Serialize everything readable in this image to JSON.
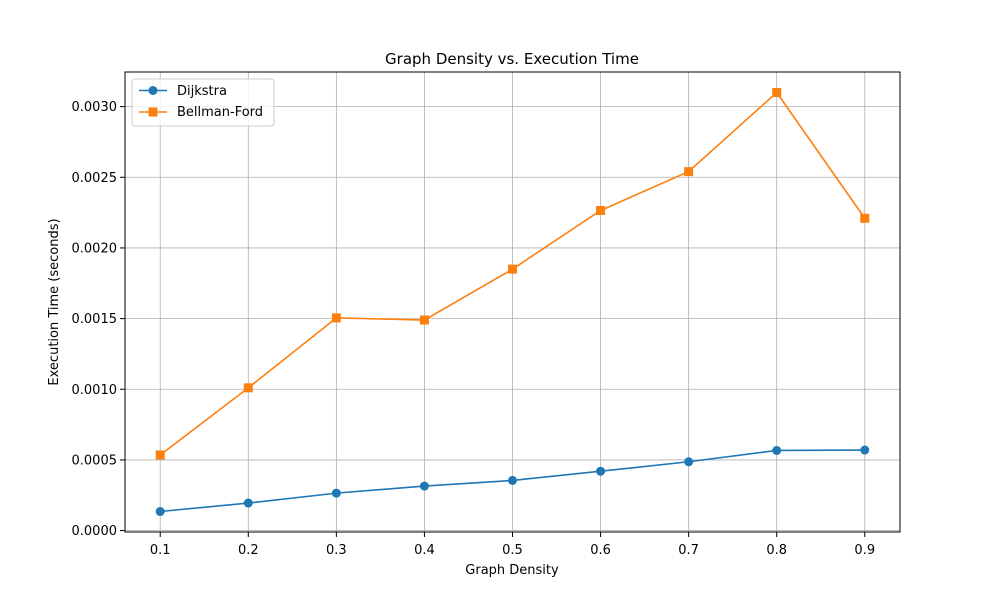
{
  "chart_data": {
    "type": "line",
    "title": "Graph Density vs. Execution Time",
    "xlabel": "Graph Density",
    "ylabel": "Execution Time (seconds)",
    "x": [
      0.1,
      0.2,
      0.3,
      0.4,
      0.5,
      0.6,
      0.7,
      0.8,
      0.9
    ],
    "xticks": [
      0.1,
      0.2,
      0.3,
      0.4,
      0.5,
      0.6,
      0.7,
      0.8,
      0.9
    ],
    "xtick_labels": [
      "0.1",
      "0.2",
      "0.3",
      "0.4",
      "0.5",
      "0.6",
      "0.7",
      "0.8",
      "0.9"
    ],
    "xlim": [
      0.06,
      0.94
    ],
    "yticks": [
      0,
      0.0005,
      0.001,
      0.0015,
      0.002,
      0.0025,
      0.003
    ],
    "ytick_labels": [
      "0.0000",
      "0.0005",
      "0.0010",
      "0.0015",
      "0.0020",
      "0.0025",
      "0.0030"
    ],
    "ylim": [
      -1e-05,
      0.003245
    ],
    "grid": true,
    "legend_position": "top-left",
    "series": [
      {
        "name": "Dijkstra",
        "color": "#1f77b4",
        "marker": "circle",
        "values": [
          0.000135,
          0.000195,
          0.000265,
          0.000315,
          0.000355,
          0.00042,
          0.000487,
          0.000567,
          0.00057
        ]
      },
      {
        "name": "Bellman-Ford",
        "color": "#ff7f0e",
        "marker": "square",
        "values": [
          0.000535,
          0.00101,
          0.001505,
          0.00149,
          0.00185,
          0.002265,
          0.00254,
          0.0031,
          0.00221
        ]
      }
    ]
  }
}
